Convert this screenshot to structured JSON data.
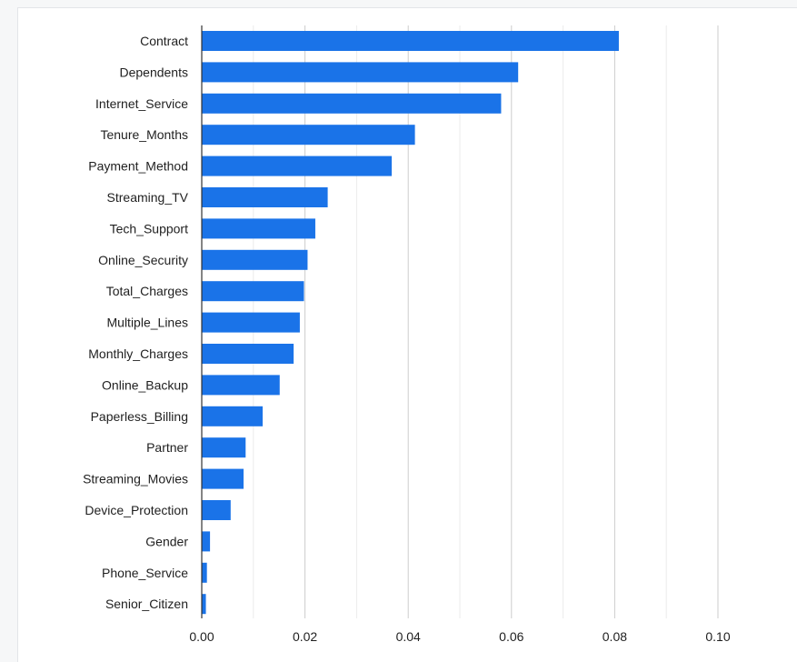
{
  "chart_data": {
    "type": "bar",
    "orientation": "horizontal",
    "title": "",
    "xlabel": "",
    "ylabel": "",
    "categories": [
      "Contract",
      "Dependents",
      "Internet_Service",
      "Tenure_Months",
      "Payment_Method",
      "Streaming_TV",
      "Tech_Support",
      "Online_Security",
      "Total_Charges",
      "Multiple_Lines",
      "Monthly_Charges",
      "Online_Backup",
      "Paperless_Billing",
      "Partner",
      "Streaming_Movies",
      "Device_Protection",
      "Gender",
      "Phone_Service",
      "Senior_Citizen"
    ],
    "values": [
      0.0808,
      0.0613,
      0.058,
      0.0413,
      0.0368,
      0.0244,
      0.022,
      0.0205,
      0.0198,
      0.019,
      0.0178,
      0.0151,
      0.0118,
      0.0085,
      0.0081,
      0.0056,
      0.0016,
      0.001,
      0.0008
    ],
    "xlim": [
      0,
      0.1
    ],
    "xticks": [
      0.0,
      0.01,
      0.02,
      0.03,
      0.04,
      0.05,
      0.06,
      0.07,
      0.08,
      0.09,
      0.1
    ],
    "xtick_labels": [
      "0.00",
      "",
      "0.02",
      "",
      "0.04",
      "",
      "0.06",
      "",
      "0.08",
      "",
      "0.10"
    ],
    "grid": true,
    "legend": "none",
    "colors": {
      "bar": "#1a73e8",
      "grid_major": "#cccccc",
      "grid_minor": "#ebebeb",
      "axis": "#333333",
      "text": "#1f1f1f"
    }
  }
}
